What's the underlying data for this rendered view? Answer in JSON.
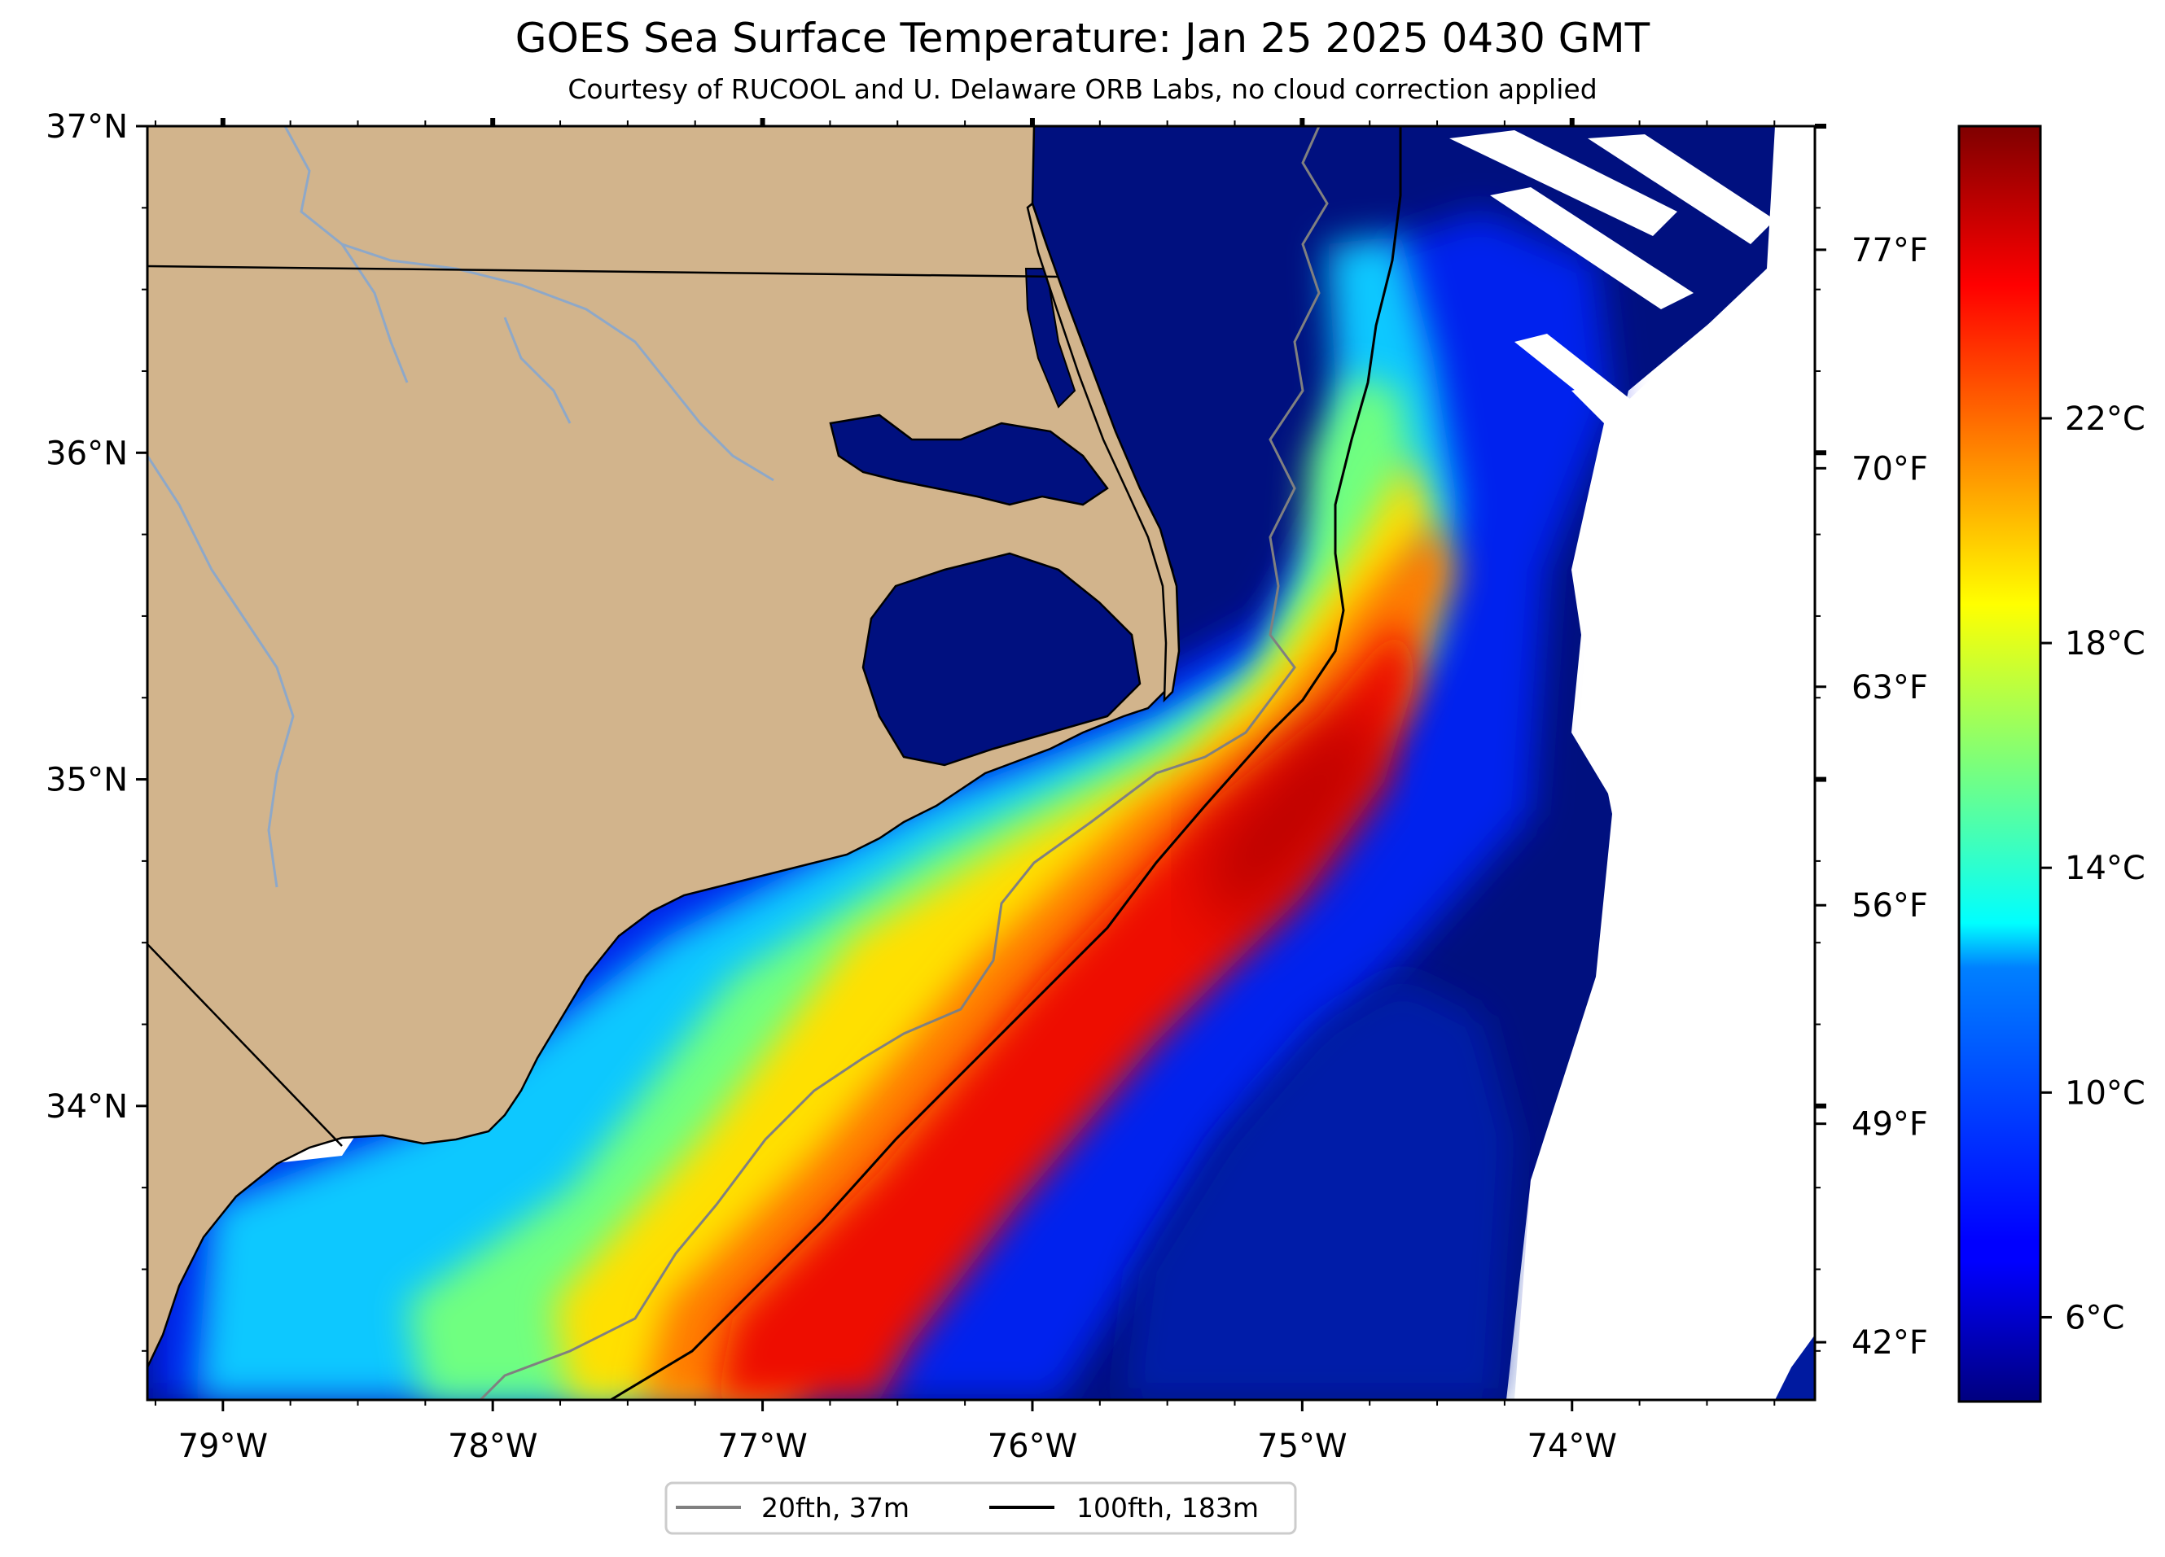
{
  "title": "GOES Sea Surface Temperature: Jan 25 2025 0430 GMT",
  "subtitle": "Courtesy of RUCOOL and U. Delaware ORB Labs, no cloud correction applied",
  "map": {
    "lon_range": [
      -79.28,
      -73.1
    ],
    "lat_range": [
      33.1,
      37.0
    ],
    "land_color": "#d2b48c",
    "river_color": "#8ea8c8",
    "lat_ticks": [
      {
        "lat": 37,
        "label": "37°N"
      },
      {
        "lat": 36,
        "label": "36°N"
      },
      {
        "lat": 35,
        "label": "35°N"
      },
      {
        "lat": 34,
        "label": "34°N"
      }
    ],
    "lon_ticks": [
      {
        "lon": -79,
        "label": "79°W"
      },
      {
        "lon": -78,
        "label": "78°W"
      },
      {
        "lon": -77,
        "label": "77°W"
      },
      {
        "lon": -76,
        "label": "76°W"
      },
      {
        "lon": -75,
        "label": "75°W"
      },
      {
        "lon": -74,
        "label": "74°W"
      }
    ],
    "fahrenheit_ticks": [
      {
        "value": 77,
        "label": "77°F"
      },
      {
        "value": 70,
        "label": "70°F"
      },
      {
        "value": 63,
        "label": "63°F"
      },
      {
        "value": 56,
        "label": "56°F"
      },
      {
        "value": 49,
        "label": "49°F"
      },
      {
        "value": 42,
        "label": "42°F"
      }
    ]
  },
  "colorbar": {
    "range_c": [
      4.5,
      27.2
    ],
    "colormap": "jet",
    "ticks": [
      {
        "value": 22,
        "label": "22°C"
      },
      {
        "value": 18,
        "label": "18°C"
      },
      {
        "value": 14,
        "label": "14°C"
      },
      {
        "value": 10,
        "label": "10°C"
      },
      {
        "value": 6,
        "label": "6°C"
      }
    ]
  },
  "legend": {
    "items": [
      {
        "label": "20fth, 37m",
        "color": "#808080"
      },
      {
        "label": "100fth, 183m",
        "color": "#000000"
      }
    ]
  }
}
